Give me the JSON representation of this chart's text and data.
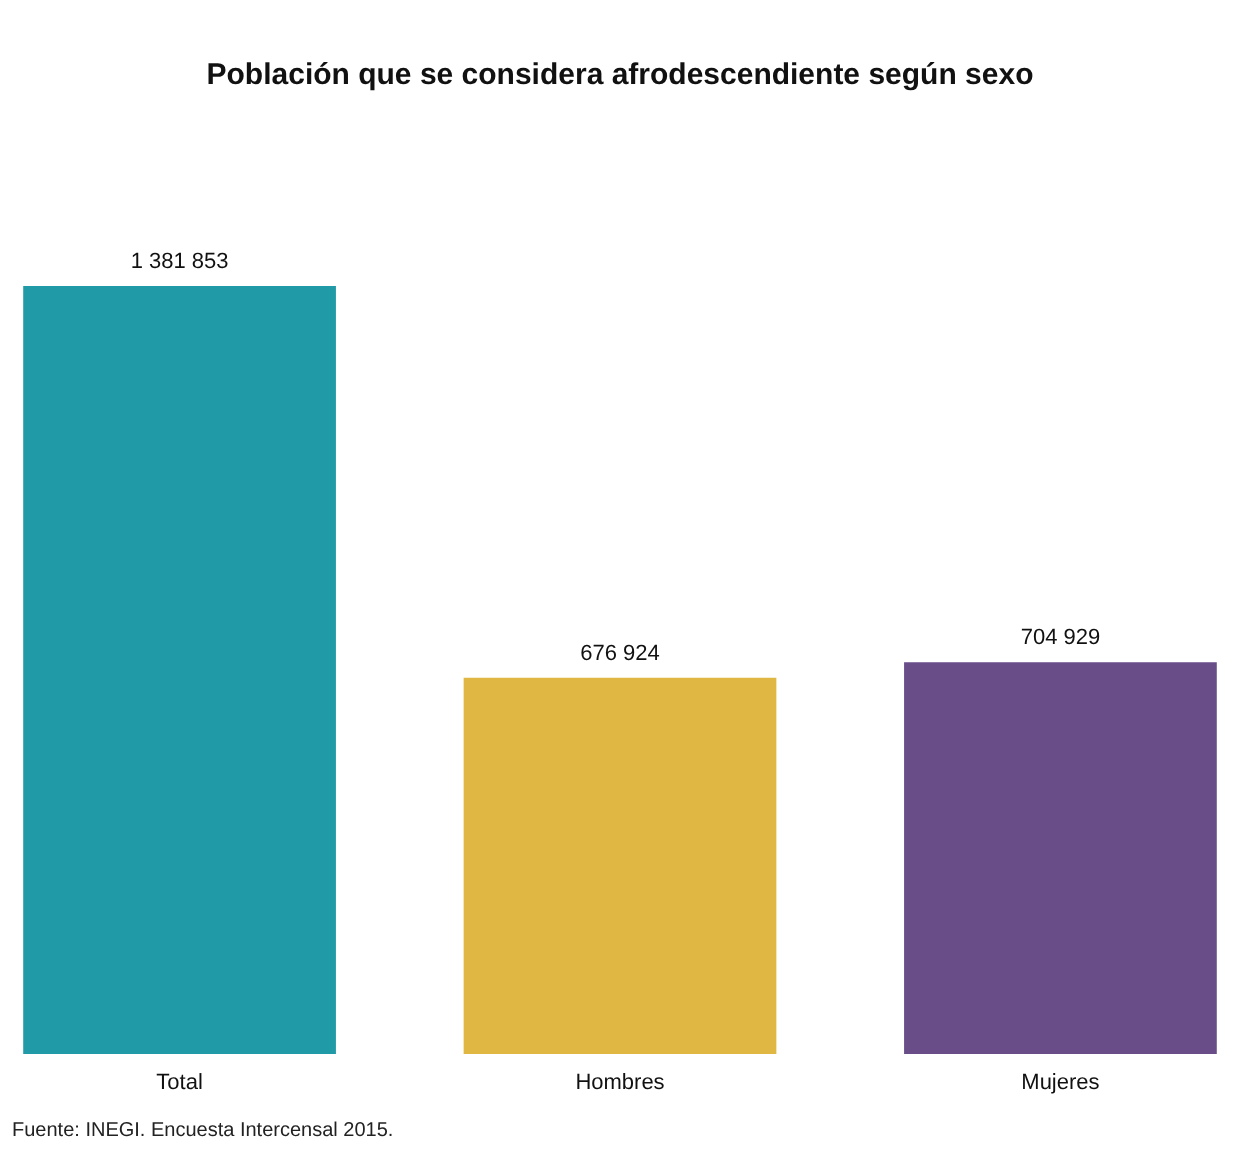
{
  "chart_data": {
    "type": "bar",
    "title": "Población que se considera afrodescendiente según sexo",
    "categories": [
      "Total",
      "Hombres",
      "Mujeres"
    ],
    "values": [
      1381853,
      676924,
      704929
    ],
    "colors": [
      "#1f9aa6",
      "#e0b742",
      "#684d88"
    ],
    "value_labels": [
      "1 381 853",
      "676 924",
      "704 929"
    ],
    "annotations": [
      "Fuente: INEGI. Encuesta Intercensal 2015."
    ]
  }
}
